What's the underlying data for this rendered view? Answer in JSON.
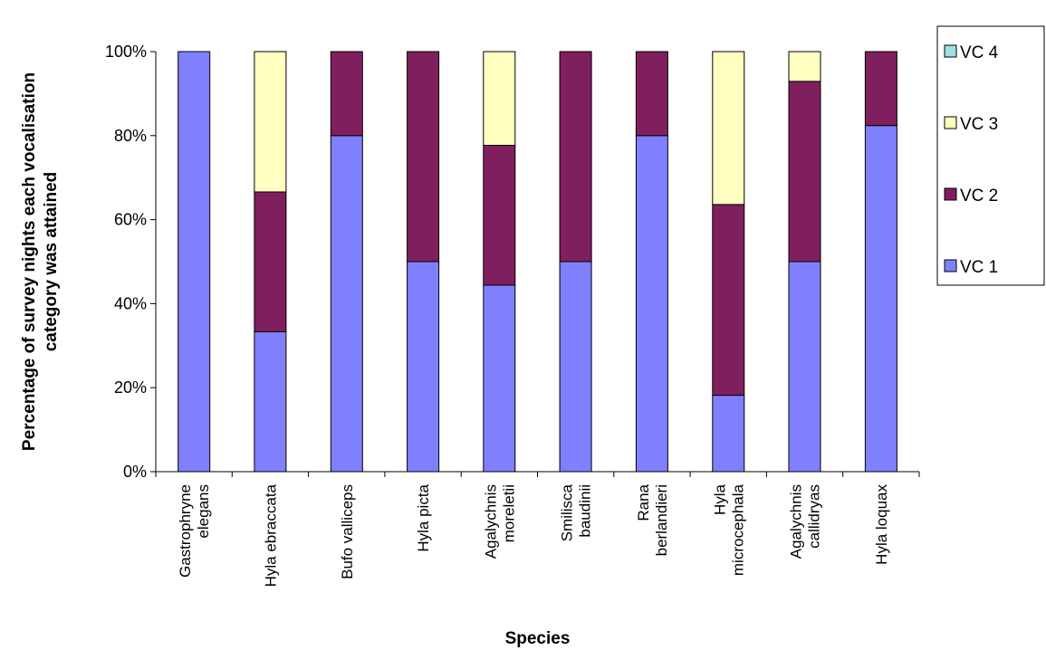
{
  "chart_data": {
    "type": "bar",
    "stacked": true,
    "percent": true,
    "xlabel": "Species",
    "ylabel": [
      "Percentage of survey nights each vocalisation",
      "category was attained"
    ],
    "ylim": [
      0,
      100
    ],
    "yticks": [
      "0%",
      "20%",
      "40%",
      "60%",
      "80%",
      "100%"
    ],
    "categories": [
      [
        "Gastrophryne",
        "elegans"
      ],
      [
        "Hyla ebraccata"
      ],
      [
        "Bufo valliceps"
      ],
      [
        "Hyla picta"
      ],
      [
        "Agalychnis",
        "moreletii"
      ],
      [
        "Smilisca",
        "baudinii"
      ],
      [
        "Rana",
        "berlandieri"
      ],
      [
        "Hyla",
        "microcephala"
      ],
      [
        "Agalychnis",
        "callidryas"
      ],
      [
        "Hyla loquax"
      ]
    ],
    "series": [
      {
        "name": "VC 1",
        "color": "#8080FF",
        "values": [
          100,
          33.3,
          80,
          50,
          44.4,
          50,
          80,
          18.2,
          50,
          82.4
        ]
      },
      {
        "name": "VC 2",
        "color": "#7F1F5E",
        "values": [
          0,
          33.3,
          20,
          50,
          33.3,
          50,
          20,
          45.4,
          42.9,
          17.6
        ]
      },
      {
        "name": "VC 3",
        "color": "#FFFFC0",
        "values": [
          0,
          33.4,
          0,
          0,
          22.3,
          0,
          0,
          36.4,
          7.1,
          0
        ]
      },
      {
        "name": "VC 4",
        "color": "#A0E0E0",
        "values": [
          0,
          0,
          0,
          0,
          0,
          0,
          0,
          0,
          0,
          0
        ]
      }
    ],
    "legend": {
      "position": "right",
      "order": [
        "VC 4",
        "VC 3",
        "VC 2",
        "VC 1"
      ]
    },
    "grid": false
  }
}
